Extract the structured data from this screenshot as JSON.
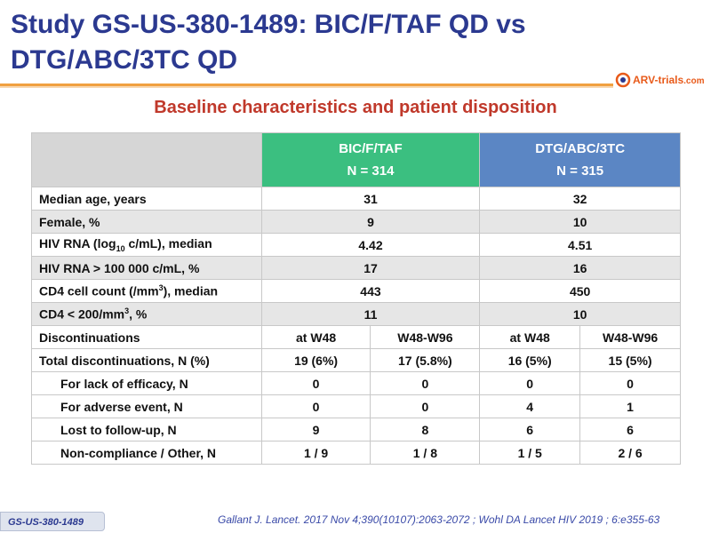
{
  "slide": {
    "title_line1": "Study GS-US-380-1489: BIC/F/TAF QD vs",
    "title_line2": "DTG/ABC/3TC QD",
    "subtitle": "Baseline characteristics and patient disposition",
    "logo_text": "ARV-trials",
    "logo_domain": ".com",
    "footer_tag": "GS-US-380-1489",
    "citation": "Gallant J. Lancet. 2017 Nov 4;390(10107):2063-2072 ; Wohl DA Lancet HIV 2019 ; 6:e355-63"
  },
  "table": {
    "arm1": {
      "name": "BIC/F/TAF",
      "n": "N = 314"
    },
    "arm2": {
      "name": "DTG/ABC/3TC",
      "n": "N = 315"
    },
    "baseline": [
      {
        "label": "Median age, years",
        "arm1": "31",
        "arm2": "32"
      },
      {
        "label": "Female, %",
        "arm1": "9",
        "arm2": "10"
      },
      {
        "label_pre": "HIV RNA (log",
        "label_sub": "10",
        "label_post": " c/mL), median",
        "arm1": "4.42",
        "arm2": "4.51"
      },
      {
        "label": "HIV RNA > 100 000 c/mL, %",
        "arm1": "17",
        "arm2": "16"
      },
      {
        "label_pre": "CD4 cell count (/mm",
        "label_sup": "3",
        "label_post": "), median",
        "arm1": "443",
        "arm2": "450"
      },
      {
        "label_pre": "CD4 < 200/mm",
        "label_sup": "3",
        "label_post": ", %",
        "arm1": "11",
        "arm2": "10"
      }
    ],
    "disc_header": {
      "label": "Discontinuations",
      "c1": "at W48",
      "c2": "W48-W96",
      "c3": "at W48",
      "c4": "W48-W96"
    },
    "disc_rows": [
      {
        "label": "Total discontinuations, N (%)",
        "c1": "19 (6%)",
        "c2": "17 (5.8%)",
        "c3": "16 (5%)",
        "c4": "15 (5%)"
      },
      {
        "label": "For lack of efficacy, N",
        "c1": "0",
        "c2": "0",
        "c3": "0",
        "c4": "0"
      },
      {
        "label": "For adverse event, N",
        "c1": "0",
        "c2": "0",
        "c3": "4",
        "c4": "1"
      },
      {
        "label": "Lost to follow-up, N",
        "c1": "9",
        "c2": "8",
        "c3": "6",
        "c4": "6"
      },
      {
        "label": "Non-compliance / Other, N",
        "c1": "1 / 9",
        "c2": "1 / 8",
        "c3": "1 / 5",
        "c4": "2 / 6"
      }
    ]
  }
}
